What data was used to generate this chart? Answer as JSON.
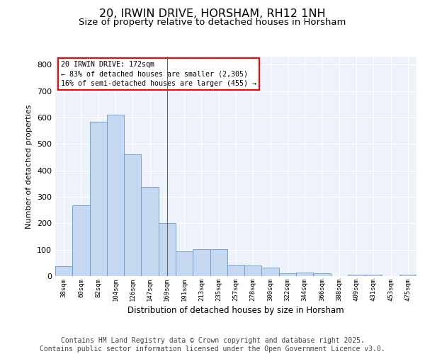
{
  "title": "20, IRWIN DRIVE, HORSHAM, RH12 1NH",
  "subtitle": "Size of property relative to detached houses in Horsham",
  "xlabel": "Distribution of detached houses by size in Horsham",
  "ylabel": "Number of detached properties",
  "categories": [
    "38sqm",
    "60sqm",
    "82sqm",
    "104sqm",
    "126sqm",
    "147sqm",
    "169sqm",
    "191sqm",
    "213sqm",
    "235sqm",
    "257sqm",
    "278sqm",
    "300sqm",
    "322sqm",
    "344sqm",
    "366sqm",
    "388sqm",
    "409sqm",
    "431sqm",
    "453sqm",
    "475sqm"
  ],
  "values": [
    38,
    268,
    585,
    610,
    460,
    338,
    200,
    93,
    103,
    103,
    43,
    40,
    33,
    12,
    13,
    10,
    0,
    5,
    5,
    0,
    5
  ],
  "bar_color": "#c5d8f0",
  "bar_edge_color": "#6699cc",
  "background_color": "#eef2fa",
  "grid_color": "#ffffff",
  "annotation_text": "20 IRWIN DRIVE: 172sqm\n← 83% of detached houses are smaller (2,305)\n16% of semi-detached houses are larger (455) →",
  "vline_index": 6,
  "ylim": [
    0,
    830
  ],
  "yticks": [
    0,
    100,
    200,
    300,
    400,
    500,
    600,
    700,
    800
  ],
  "title_fontsize": 11.5,
  "subtitle_fontsize": 9.5,
  "footer": "Contains HM Land Registry data © Crown copyright and database right 2025.\nContains public sector information licensed under the Open Government Licence v3.0.",
  "footer_fontsize": 7.0
}
